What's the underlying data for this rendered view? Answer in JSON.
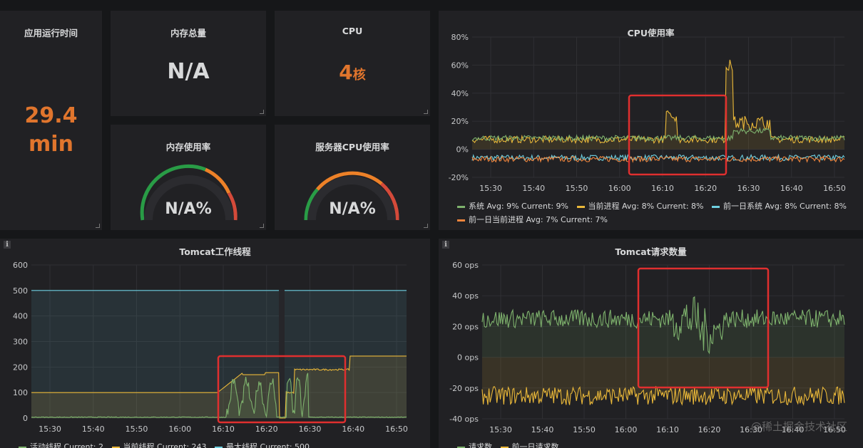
{
  "panels": {
    "uptime": {
      "title": "应用运行时间",
      "value_line1": "29.4",
      "value_line2": "min"
    },
    "mem_total": {
      "title": "内存总量",
      "value": "N/A"
    },
    "cpu": {
      "title": "CPU",
      "value_num": "4",
      "value_unit": "核"
    },
    "mem_usage": {
      "title": "内存使用率",
      "value": "N/A%"
    },
    "server_cpu": {
      "title": "服务器CPU使用率",
      "value": "N/A%"
    },
    "cpu_rate": {
      "title": "CPU使用率",
      "legend": [
        {
          "label": "系统  Avg: 9%  Current: 9%",
          "color": "#7eb26d"
        },
        {
          "label": "当前进程  Avg: 8%  Current: 8%",
          "color": "#eab839"
        },
        {
          "label": "前一日系统  Avg: 8%  Current: 8%",
          "color": "#6ed0e0"
        },
        {
          "label": "前一日当前进程  Avg: 7%  Current: 7%",
          "color": "#ef843c"
        }
      ]
    },
    "tomcat_threads": {
      "title": "Tomcat工作线程",
      "legend": [
        {
          "label": "活动线程  Current: 2",
          "color": "#7eb26d"
        },
        {
          "label": "当前线程  Current: 243",
          "color": "#eab839"
        },
        {
          "label": "最大线程  Current: 500",
          "color": "#6ed0e0"
        }
      ]
    },
    "tomcat_requests": {
      "title": "Tomcat请求数量",
      "legend": [
        {
          "label": "请求数",
          "color": "#7eb26d"
        },
        {
          "label": "前一日请求数",
          "color": "#eab839"
        }
      ]
    }
  },
  "watermark": "@稀土掘金技术社区",
  "chart_data": [
    {
      "type": "line",
      "title": "CPU使用率",
      "x_ticks": [
        "15:30",
        "15:40",
        "15:50",
        "16:00",
        "16:10",
        "16:20",
        "16:30",
        "16:40",
        "16:50"
      ],
      "y_ticks": [
        "80%",
        "60%",
        "40%",
        "20%",
        "0%",
        "-20%"
      ],
      "ylim": [
        -20,
        80
      ],
      "series": [
        {
          "name": "系统",
          "avg": 9,
          "current": 9
        },
        {
          "name": "当前进程",
          "avg": 8,
          "current": 8,
          "peak": 64
        },
        {
          "name": "前一日系统",
          "avg": 8,
          "current": 8
        },
        {
          "name": "前一日当前进程",
          "avg": 7,
          "current": 7
        }
      ]
    },
    {
      "type": "area",
      "title": "Tomcat工作线程",
      "x_ticks": [
        "15:30",
        "15:40",
        "15:50",
        "16:00",
        "16:10",
        "16:20",
        "16:30",
        "16:40",
        "16:50"
      ],
      "y_ticks": [
        "600",
        "500",
        "400",
        "300",
        "200",
        "100",
        "0"
      ],
      "ylim": [
        0,
        600
      ],
      "series": [
        {
          "name": "活动线程",
          "current": 2
        },
        {
          "name": "当前线程",
          "current": 243
        },
        {
          "name": "最大线程",
          "current": 500
        }
      ]
    },
    {
      "type": "line",
      "title": "Tomcat请求数量",
      "x_ticks": [
        "15:30",
        "15:40",
        "15:50",
        "16:00",
        "16:10",
        "16:20",
        "16:30",
        "16:40",
        "16:50"
      ],
      "y_ticks": [
        "60 ops",
        "40 ops",
        "20 ops",
        "0 ops",
        "-20 ops",
        "-40 ops"
      ],
      "ylim": [
        -40,
        60
      ],
      "series": [
        {
          "name": "请求数"
        },
        {
          "name": "前一日请求数"
        }
      ]
    }
  ]
}
